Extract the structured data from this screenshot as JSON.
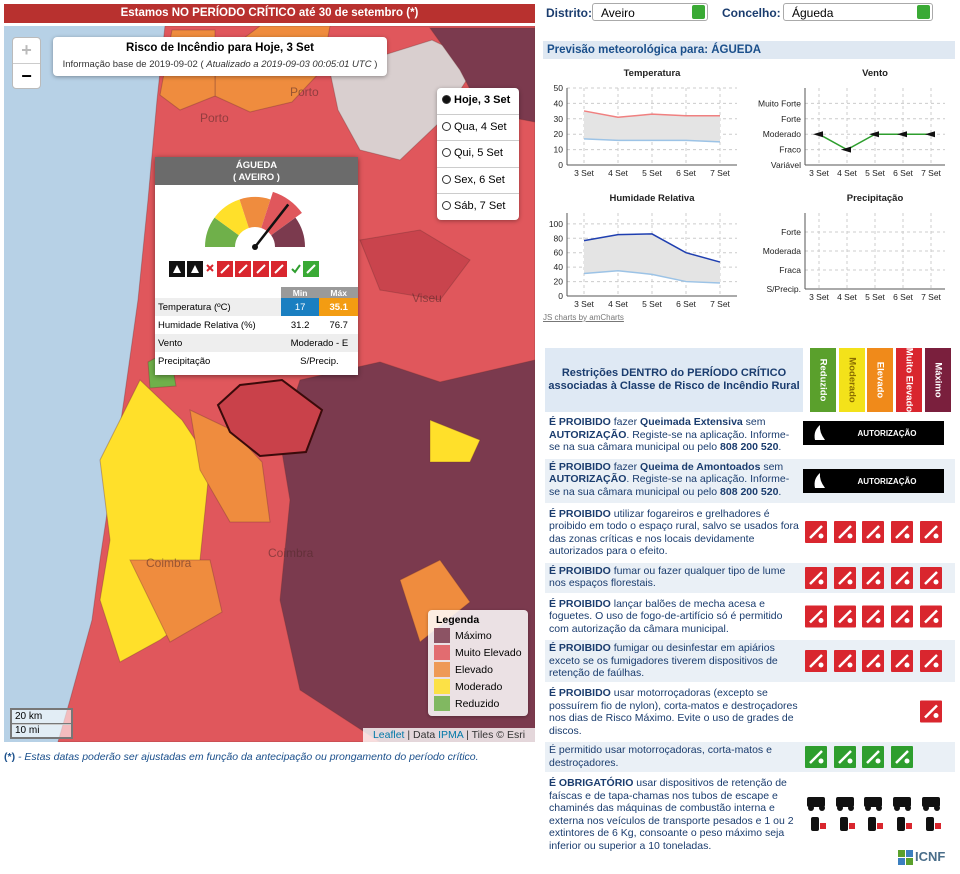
{
  "banner": "Estamos NO PERÍODO CRÍTICO até 30 de setembro (*)",
  "map": {
    "zoom": [
      "+",
      "−"
    ],
    "title": "Risco de Incêndio para Hoje, 3 Set",
    "info": {
      "base": "Informação base de 2019-09-02 (",
      "updated": "Atualizado a 2019-09-03 00:05:01 UTC",
      "close": ")"
    },
    "places": [
      "Porto",
      "Porto",
      "Viseu",
      "Coimbra",
      "Coimbra"
    ],
    "days": [
      {
        "label": "Hoje, 3 Set",
        "selected": true
      },
      {
        "label": "Qua, 4 Set",
        "selected": false
      },
      {
        "label": "Qui, 5 Set",
        "selected": false
      },
      {
        "label": "Sex, 6 Set",
        "selected": false
      },
      {
        "label": "Sáb, 7 Set",
        "selected": false
      }
    ],
    "popup": {
      "name": "ÁGUEDA",
      "district": "( AVEIRO )",
      "columns": [
        "Min",
        "Máx"
      ],
      "rows": [
        {
          "label": "Temperatura (ºC)",
          "min": 17,
          "max": 35.1
        },
        {
          "label": "Humidade Relativa (%)",
          "min": 31.2,
          "max": 76.7
        },
        {
          "label": "Vento",
          "value": "Moderado - E"
        },
        {
          "label": "Precipitação",
          "value": "S/Precip."
        }
      ]
    },
    "legend": {
      "title": "Legenda",
      "items": [
        {
          "label": "Máximo",
          "color": "#7b3a4e"
        },
        {
          "label": "Muito Elevado",
          "color": "#e0575c"
        },
        {
          "label": "Elevado",
          "color": "#ef8c3e"
        },
        {
          "label": "Moderado",
          "color": "#ffe02a"
        },
        {
          "label": "Reduzido",
          "color": "#6fb04a"
        }
      ]
    },
    "scale": [
      "20 km",
      "10 mi"
    ],
    "attribution": [
      "Leaflet",
      "| Data",
      "IPMA",
      "| Tiles © Esri"
    ]
  },
  "footnote": {
    "mark": "(*)",
    "text": " - Estas datas poderão ser ajustadas em função da antecipação ou prongamento do período crítico."
  },
  "selectors": [
    {
      "label": "Distrito:",
      "value": "Aveiro"
    },
    {
      "label": "Concelho:",
      "value": "Águeda"
    }
  ],
  "weather": {
    "title": "Previsão meteorológica para: ÁGUEDA",
    "charts": [
      {
        "type": "line",
        "title": "Temperatura",
        "categories": [
          "3 Set",
          "4 Set",
          "5 Set",
          "6 Set",
          "7 Set"
        ],
        "ylim": [
          0,
          50
        ],
        "yticks": [
          0,
          10,
          20,
          30,
          40,
          50
        ],
        "grid": true,
        "band": true,
        "series": [
          {
            "color": "#9cc3e6",
            "values": [
              17,
              16,
              16,
              16,
              15
            ]
          },
          {
            "color": "#f08080",
            "values": [
              35.1,
              31,
              33,
              32,
              32
            ]
          }
        ]
      },
      {
        "type": "line",
        "title": "Vento",
        "categories": [
          "3 Set",
          "4 Set",
          "5 Set",
          "6 Set",
          "7 Set"
        ],
        "ylim": [
          0,
          5
        ],
        "yticks": [
          {
            "value": 0,
            "label": "Variável"
          },
          {
            "value": 1,
            "label": "Fraco"
          },
          {
            "value": 2,
            "label": "Moderado"
          },
          {
            "value": 3,
            "label": "Forte"
          },
          {
            "value": 4,
            "label": "Muito Forte"
          }
        ],
        "grid": true,
        "markers": true,
        "series": [
          {
            "color": "#2e9e2e",
            "values": [
              2,
              1,
              2,
              2,
              2
            ]
          }
        ]
      },
      {
        "type": "line",
        "title": "Humidade Relativa",
        "categories": [
          "3 Set",
          "4 Set",
          "5 Set",
          "6 Set",
          "7 Set"
        ],
        "ylim": [
          0,
          115
        ],
        "yticks": [
          0,
          20,
          40,
          60,
          80,
          100
        ],
        "grid": true,
        "band": true,
        "series": [
          {
            "color": "#9cc3e6",
            "values": [
              31.2,
              35,
              30,
              20,
              18
            ]
          },
          {
            "color": "#1f3fb0",
            "values": [
              76.7,
              85,
              86,
              60,
              47
            ]
          }
        ]
      },
      {
        "type": "line",
        "title": "Precipitação",
        "categories": [
          "3 Set",
          "4 Set",
          "5 Set",
          "6 Set",
          "7 Set"
        ],
        "ylim": [
          0,
          4
        ],
        "yticks": [
          {
            "value": 0,
            "label": "S/Precip."
          },
          {
            "value": 1,
            "label": "Fraca"
          },
          {
            "value": 2,
            "label": "Moderada"
          },
          {
            "value": 3,
            "label": "Forte"
          }
        ],
        "grid": true
      }
    ],
    "credit": "JS charts by amCharts"
  },
  "restrictions": {
    "title": "Restrições DENTRO do PERÍODO CRÍTICO associadas à Classe de Risco de Incêndio Rural",
    "levels": [
      {
        "label": "Reduzido",
        "color": "#5aa02c",
        "text_color": "#ffffff"
      },
      {
        "label": "Moderado",
        "color": "#f3e21a",
        "text_color": "#8a6d00"
      },
      {
        "label": "Elevado",
        "color": "#f08a1a",
        "text_color": "#ffffff"
      },
      {
        "label": "Muito Elevado",
        "color": "#d9262e",
        "text_color": "#ffffff"
      },
      {
        "label": "Máximo",
        "color": "#7a1f3d",
        "text_color": "#ffffff"
      }
    ],
    "rows": [
      {
        "segments": [
          {
            "text": "É PROIBIDO",
            "bold": true
          },
          " fazer ",
          {
            "text": "Queimada Extensiva",
            "bold": true
          },
          " sem ",
          {
            "text": "AUTORIZAÇÃO",
            "bold": true
          },
          ". Registe-se na aplicação. Informe-se na sua câmara municipal ou pelo ",
          {
            "text": "808 200 520",
            "bold": true
          },
          "."
        ],
        "action": "AUTORIZAÇÃO"
      },
      {
        "segments": [
          {
            "text": "É PROIBIDO",
            "bold": true
          },
          " fazer ",
          {
            "text": "Queima de Amontoados",
            "bold": true
          },
          " sem ",
          {
            "text": "AUTORIZAÇÃO",
            "bold": true
          },
          ". Registe-se na aplicação. Informe-se na sua câmara municipal ou pelo ",
          {
            "text": "808 200 520",
            "bold": true
          },
          "."
        ],
        "action": "AUTORIZAÇÃO"
      },
      {
        "segments": [
          {
            "text": "É PROIBIDO",
            "bold": true
          },
          " utilizar fogareiros e grelhadores é proibido em todo o espaço rural, salvo se usados fora das zonas críticas e nos locais devidamente autorizados para o efeito."
        ]
      },
      {
        "segments": [
          {
            "text": "É PROIBIDO",
            "bold": true
          },
          " fumar ou fazer qualquer tipo de lume nos espaços florestais."
        ]
      },
      {
        "segments": [
          {
            "text": "É PROIBIDO",
            "bold": true
          },
          " lançar balões de mecha acesa e foguetes. O uso de fogo-de-artifício só é permitido com autorização da câmara municipal."
        ]
      },
      {
        "segments": [
          {
            "text": "É PROIBIDO",
            "bold": true
          },
          " fumigar ou desinfestar em apiários exceto se os fumigadores tiverem dispositivos de retenção de faúlhas."
        ]
      },
      {
        "segments": [
          {
            "text": "É PROIBIDO",
            "bold": true
          },
          " usar motorroçadoras (excepto se possuírem fio de nylon), corta-matos e destroçadores nos dias de Risco Máximo. Evite o uso de grades de discos."
        ]
      },
      {
        "segments": [
          "É permitido usar motorroçadoras, corta-matos e destroçadores."
        ]
      },
      {
        "segments": [
          {
            "text": "É OBRIGATÓRIO",
            "bold": true
          },
          " usar dispositivos de retenção de faíscas e de tapa-chamas nos tubos de escape e chaminés das máquinas de combustão interna e externa nos veículos de transporte pesados e 1 ou 2 extintores de 6 Kg, consoante o peso máximo seja inferior ou superior a 10 toneladas."
        ]
      }
    ]
  },
  "logo": "ICNF"
}
